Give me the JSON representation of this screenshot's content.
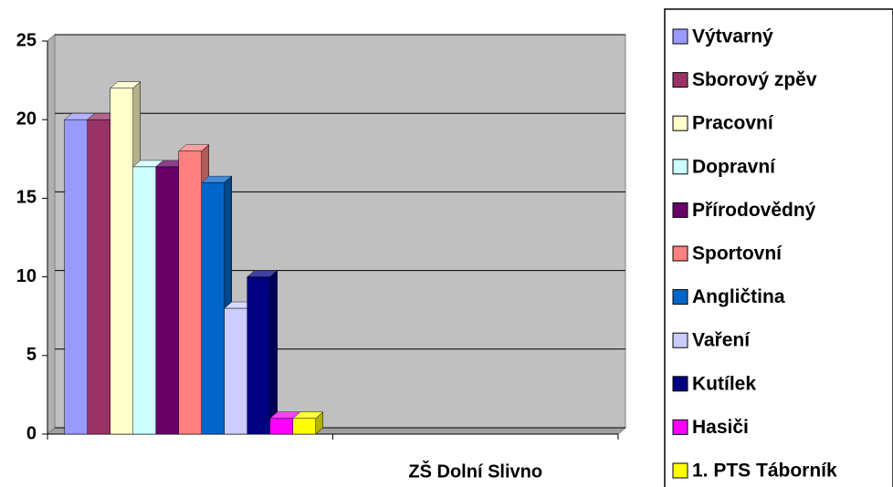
{
  "chart_data": {
    "type": "bar",
    "categories": [
      null,
      "ZŠ Dolní Slivno"
    ],
    "series": [
      {
        "name": "Výtvarný",
        "color": "#9999ff",
        "values": [
          20,
          null
        ]
      },
      {
        "name": "Sborový zpěv",
        "color": "#993366",
        "values": [
          20,
          null
        ]
      },
      {
        "name": "Pracovní",
        "color": "#ffffcc",
        "values": [
          22,
          null
        ]
      },
      {
        "name": "Dopravní",
        "color": "#ccffff",
        "values": [
          17,
          null
        ]
      },
      {
        "name": "Přírodovědný",
        "color": "#660066",
        "values": [
          17,
          null
        ]
      },
      {
        "name": "Sportovní",
        "color": "#ff8080",
        "values": [
          18,
          null
        ]
      },
      {
        "name": "Angličtina",
        "color": "#0066cc",
        "values": [
          16,
          null
        ]
      },
      {
        "name": "Vaření",
        "color": "#ccccff",
        "values": [
          8,
          null
        ]
      },
      {
        "name": "Kutílek",
        "color": "#000080",
        "values": [
          10,
          null
        ]
      },
      {
        "name": "Hasiči",
        "color": "#ff00ff",
        "values": [
          1,
          null
        ]
      },
      {
        "name": "1. PTS Táborník",
        "color": "#ffff00",
        "values": [
          1,
          null
        ]
      }
    ],
    "ylim": [
      0,
      25
    ],
    "yticks": [
      0,
      5,
      10,
      15,
      20,
      25
    ],
    "grid": true,
    "legend": "right"
  }
}
